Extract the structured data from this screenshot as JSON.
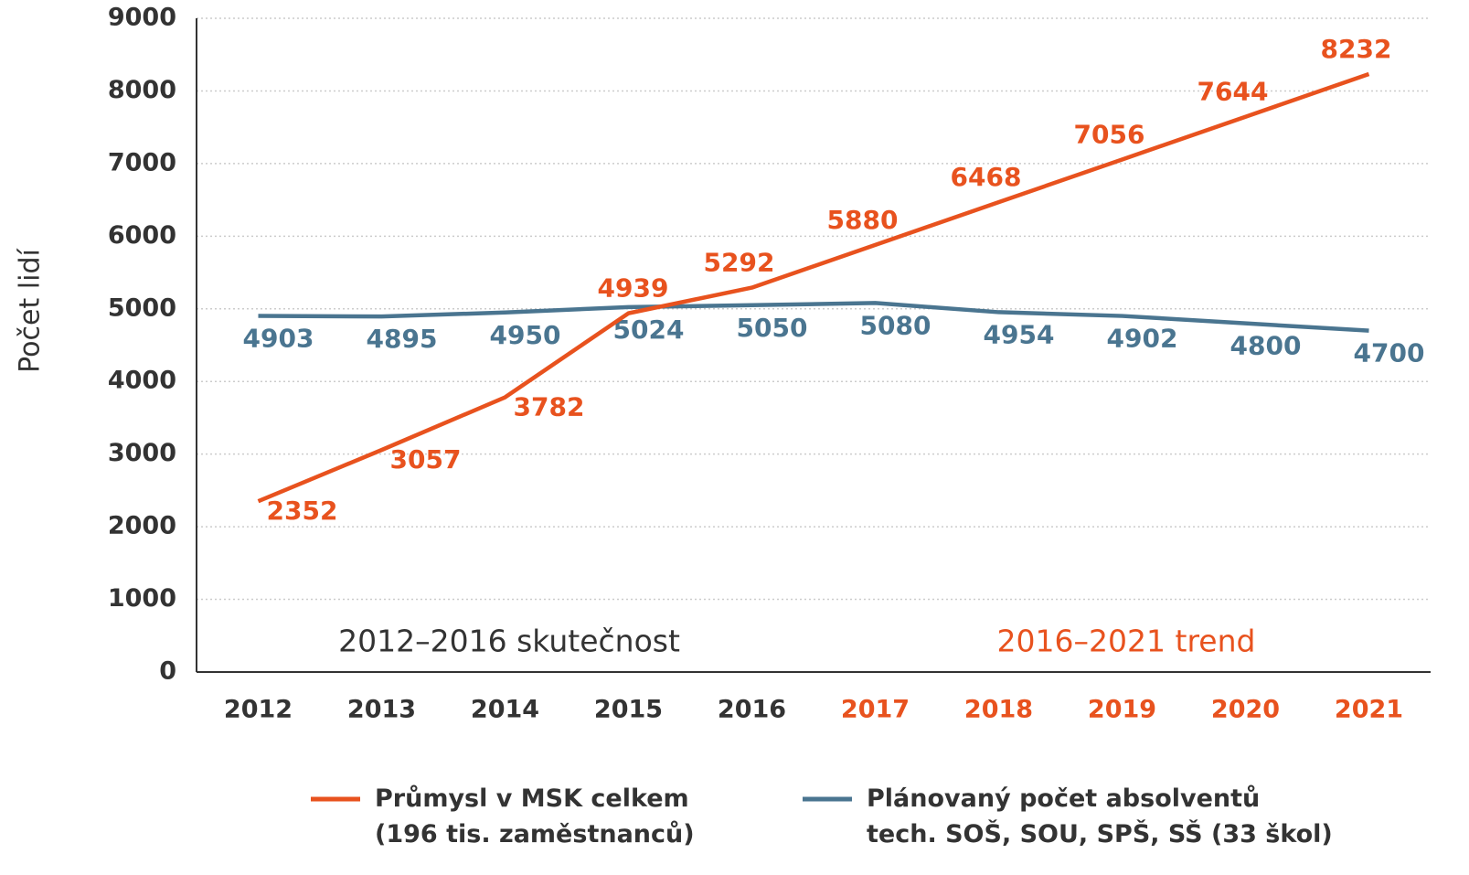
{
  "chart_data": {
    "type": "line",
    "y_label": "Počet lidí",
    "categories": [
      "2012",
      "2013",
      "2014",
      "2015",
      "2016",
      "2017",
      "2018",
      "2019",
      "2020",
      "2021"
    ],
    "category_colors": [
      "#333333",
      "#333333",
      "#333333",
      "#333333",
      "#333333",
      "#e8521e",
      "#e8521e",
      "#e8521e",
      "#e8521e",
      "#e8521e"
    ],
    "series": [
      {
        "name": "Průmysl v MSK celkem\n(196 tis. zaměstnanců)",
        "color": "#e8521e",
        "values": [
          2352,
          3057,
          3782,
          4939,
          5292,
          5880,
          6468,
          7056,
          7644,
          8232
        ]
      },
      {
        "name": "Plánovaný počet absolventů\ntech. SOŠ, SOU, SPŠ, SŠ (33 škol)",
        "color": "#4a7590",
        "values": [
          4903,
          4895,
          4950,
          5024,
          5050,
          5080,
          4954,
          4902,
          4800,
          4700
        ]
      }
    ],
    "annotations": [
      {
        "text": "2012–2016 skutečnost",
        "color": "#333333"
      },
      {
        "text": "2016–2021 trend",
        "color": "#e8521e"
      }
    ],
    "ylim": [
      0,
      9000
    ],
    "yticks": [
      0,
      1000,
      2000,
      3000,
      4000,
      5000,
      6000,
      7000,
      8000,
      9000
    ],
    "grid": true,
    "legend": "bottom"
  }
}
